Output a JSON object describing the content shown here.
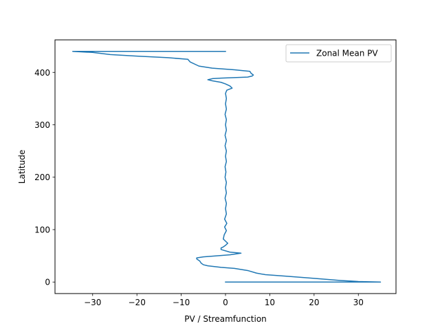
{
  "chart_data": {
    "type": "line",
    "xlabel": "PV / Streamfunction",
    "ylabel": "Latitude",
    "xlim": [
      -38.5,
      38.5
    ],
    "ylim": [
      -22,
      462
    ],
    "xticks": [
      -30,
      -20,
      -10,
      0,
      10,
      20,
      30
    ],
    "xtick_labels": [
      "−30",
      "−20",
      "−10",
      "0",
      "10",
      "20",
      "30"
    ],
    "yticks": [
      0,
      100,
      200,
      300,
      400
    ],
    "ytick_labels": [
      "0",
      "100",
      "200",
      "300",
      "400"
    ],
    "grid": false,
    "legend_position": "top-right",
    "series": [
      {
        "name": "Zonal Mean PV",
        "color": "#1f77b4",
        "points": [
          [
            0,
            0
          ],
          [
            35,
            0
          ],
          [
            30,
            1
          ],
          [
            26,
            3
          ],
          [
            20,
            7
          ],
          [
            14,
            11
          ],
          [
            9,
            14
          ],
          [
            7,
            17
          ],
          [
            5,
            22
          ],
          [
            2,
            26
          ],
          [
            -1,
            28
          ],
          [
            -4,
            31
          ],
          [
            -5,
            33
          ],
          [
            -5.5,
            36
          ],
          [
            -5.8,
            40
          ],
          [
            -6.5,
            44
          ],
          [
            -6.5,
            46
          ],
          [
            -5,
            48
          ],
          [
            -2,
            50
          ],
          [
            1,
            52
          ],
          [
            3.5,
            55
          ],
          [
            1,
            57
          ],
          [
            -1,
            62
          ],
          [
            -1,
            65
          ],
          [
            -0.5,
            67
          ],
          [
            0,
            70
          ],
          [
            0.5,
            74
          ],
          [
            0,
            78
          ],
          [
            -0.5,
            82
          ],
          [
            -0.3,
            90
          ],
          [
            0.2,
            98
          ],
          [
            -0.2,
            105
          ],
          [
            0.3,
            112
          ],
          [
            -0.2,
            120
          ],
          [
            0.2,
            130
          ],
          [
            0,
            140
          ],
          [
            0.2,
            150
          ],
          [
            -0.1,
            160
          ],
          [
            0.2,
            170
          ],
          [
            0,
            180
          ],
          [
            0.2,
            190
          ],
          [
            -0.1,
            200
          ],
          [
            0.1,
            210
          ],
          [
            -0.1,
            220
          ],
          [
            0.2,
            230
          ],
          [
            0,
            240
          ],
          [
            0.2,
            250
          ],
          [
            -0.1,
            260
          ],
          [
            0.2,
            270
          ],
          [
            -0.1,
            280
          ],
          [
            0.2,
            290
          ],
          [
            0,
            300
          ],
          [
            0.2,
            310
          ],
          [
            -0.1,
            320
          ],
          [
            0.2,
            330
          ],
          [
            0,
            340
          ],
          [
            0.2,
            350
          ],
          [
            0,
            360
          ],
          [
            0.3,
            366
          ],
          [
            1.5,
            370
          ],
          [
            1,
            374
          ],
          [
            0,
            378
          ],
          [
            -1,
            381
          ],
          [
            -3,
            384
          ],
          [
            -4,
            386
          ],
          [
            -3,
            388
          ],
          [
            -1,
            389
          ],
          [
            2,
            390
          ],
          [
            5,
            391
          ],
          [
            6,
            393
          ],
          [
            6.3,
            395
          ],
          [
            5.8,
            398
          ],
          [
            5.5,
            402
          ],
          [
            2,
            405
          ],
          [
            -3,
            408
          ],
          [
            -6,
            412
          ],
          [
            -8,
            420
          ],
          [
            -8.5,
            425
          ],
          [
            -13,
            428
          ],
          [
            -20,
            431
          ],
          [
            -26,
            434
          ],
          [
            -30,
            438
          ],
          [
            -34.5,
            440
          ],
          [
            0,
            440
          ]
        ]
      }
    ]
  }
}
